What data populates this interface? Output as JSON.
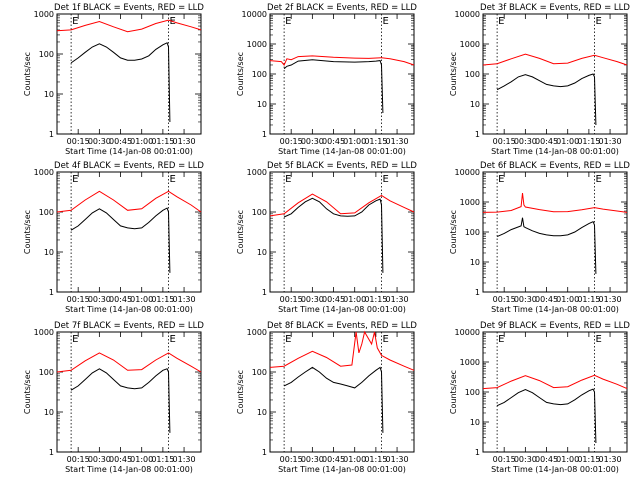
{
  "figure": {
    "ylabel": "Counts/sec",
    "xlabel": "Start Time (14-Jan-08 00:01:00)",
    "marker_label": "E",
    "colors": {
      "events": "#000000",
      "lld": "#ff0000",
      "axes": "#000000",
      "background": "#ffffff"
    }
  },
  "chart_data": [
    {
      "type": "line",
      "title": "Det 1f BLACK = Events, RED = LLD",
      "xlabel": "Start Time (14-Jan-08 00:01:00)",
      "ylabel": "Counts/sec",
      "y_scale": "log",
      "ylim": [
        1,
        1000
      ],
      "ytick_labels": [
        "1",
        "10",
        "100",
        "1000"
      ],
      "xlim": [
        "00:00",
        "01:42"
      ],
      "xtick_labels": [
        "00:15",
        "00:30",
        "00:45",
        "01:00",
        "01:15",
        "01:30"
      ],
      "markers": [
        "00:10",
        "01:19"
      ],
      "series": [
        {
          "name": "LLD",
          "color": "#ff0000",
          "x": [
            "00:00",
            "00:10",
            "00:20",
            "00:30",
            "00:40",
            "00:50",
            "01:00",
            "01:10",
            "01:19",
            "01:25",
            "01:35",
            "01:42"
          ],
          "values": [
            380,
            400,
            520,
            650,
            480,
            360,
            420,
            580,
            700,
            600,
            480,
            400
          ]
        },
        {
          "name": "Events",
          "color": "#000000",
          "x": [
            "00:10",
            "00:15",
            "00:20",
            "00:25",
            "00:30",
            "00:35",
            "00:40",
            "00:45",
            "00:50",
            "00:55",
            "01:00",
            "01:05",
            "01:10",
            "01:15",
            "01:18",
            "01:19",
            "01:20"
          ],
          "values": [
            60,
            80,
            110,
            150,
            180,
            150,
            110,
            80,
            70,
            70,
            75,
            90,
            130,
            170,
            190,
            150,
            2
          ]
        }
      ]
    },
    {
      "type": "line",
      "title": "Det 2f BLACK = Events, RED = LLD",
      "xlabel": "Start Time (14-Jan-08 00:01:00)",
      "ylabel": "Counts/sec",
      "y_scale": "log",
      "ylim": [
        1,
        10000
      ],
      "ytick_labels": [
        "1",
        "10",
        "100",
        "1000",
        "10000"
      ],
      "xlim": [
        "00:00",
        "01:42"
      ],
      "xtick_labels": [
        "00:15",
        "00:30",
        "00:45",
        "01:00",
        "01:15",
        "01:30"
      ],
      "markers": [
        "00:10",
        "01:19"
      ],
      "series": [
        {
          "name": "LLD",
          "color": "#ff0000",
          "x": [
            "00:00",
            "00:08",
            "00:10",
            "00:12",
            "00:15",
            "00:20",
            "00:30",
            "00:45",
            "01:00",
            "01:10",
            "01:19",
            "01:25",
            "01:35",
            "01:42"
          ],
          "values": [
            280,
            260,
            200,
            320,
            300,
            380,
            400,
            360,
            340,
            330,
            350,
            320,
            260,
            200
          ]
        },
        {
          "name": "Events",
          "color": "#000000",
          "x": [
            "00:10",
            "00:12",
            "00:15",
            "00:20",
            "00:30",
            "00:45",
            "01:00",
            "01:10",
            "01:15",
            "01:18",
            "01:19",
            "01:20"
          ],
          "values": [
            150,
            180,
            200,
            270,
            300,
            260,
            250,
            260,
            270,
            280,
            200,
            5
          ]
        }
      ]
    },
    {
      "type": "line",
      "title": "Det 3f BLACK = Events, RED = LLD",
      "xlabel": "Start Time (14-Jan-08 00:01:00)",
      "ylabel": "Counts/sec",
      "y_scale": "log",
      "ylim": [
        1,
        10000
      ],
      "ytick_labels": [
        "1",
        "10",
        "100",
        "1000",
        "10000"
      ],
      "xlim": [
        "00:00",
        "01:42"
      ],
      "xtick_labels": [
        "00:15",
        "00:30",
        "00:45",
        "01:00",
        "01:15",
        "01:30"
      ],
      "markers": [
        "00:10",
        "01:19"
      ],
      "series": [
        {
          "name": "LLD",
          "color": "#ff0000",
          "x": [
            "00:00",
            "00:10",
            "00:20",
            "00:30",
            "00:40",
            "00:50",
            "01:00",
            "01:10",
            "01:19",
            "01:25",
            "01:35",
            "01:42"
          ],
          "values": [
            200,
            220,
            320,
            460,
            330,
            220,
            230,
            330,
            420,
            350,
            260,
            200
          ]
        },
        {
          "name": "Events",
          "color": "#000000",
          "x": [
            "00:10",
            "00:15",
            "00:20",
            "00:25",
            "00:30",
            "00:35",
            "00:40",
            "00:45",
            "00:50",
            "00:55",
            "01:00",
            "01:05",
            "01:10",
            "01:15",
            "01:18",
            "01:19",
            "01:20"
          ],
          "values": [
            30,
            40,
            55,
            80,
            95,
            80,
            60,
            45,
            40,
            38,
            40,
            50,
            70,
            90,
            100,
            80,
            2
          ]
        }
      ]
    },
    {
      "type": "line",
      "title": "Det 4f BLACK = Events, RED = LLD",
      "xlabel": "Start Time (14-Jan-08 00:01:00)",
      "ylabel": "Counts/sec",
      "y_scale": "log",
      "ylim": [
        1,
        1000
      ],
      "ytick_labels": [
        "1",
        "10",
        "100",
        "1000"
      ],
      "xlim": [
        "00:00",
        "01:42"
      ],
      "xtick_labels": [
        "00:15",
        "00:30",
        "00:45",
        "01:00",
        "01:15",
        "01:30"
      ],
      "markers": [
        "00:10",
        "01:19"
      ],
      "series": [
        {
          "name": "LLD",
          "color": "#ff0000",
          "x": [
            "00:00",
            "00:10",
            "00:20",
            "00:30",
            "00:40",
            "00:50",
            "01:00",
            "01:10",
            "01:19",
            "01:25",
            "01:35",
            "01:42"
          ],
          "values": [
            100,
            110,
            200,
            330,
            200,
            110,
            120,
            220,
            330,
            240,
            150,
            100
          ]
        },
        {
          "name": "Events",
          "color": "#000000",
          "x": [
            "00:10",
            "00:15",
            "00:20",
            "00:25",
            "00:30",
            "00:35",
            "00:40",
            "00:45",
            "00:50",
            "00:55",
            "01:00",
            "01:05",
            "01:10",
            "01:15",
            "01:18",
            "01:19",
            "01:20"
          ],
          "values": [
            35,
            45,
            65,
            95,
            120,
            95,
            65,
            45,
            40,
            38,
            40,
            55,
            80,
            110,
            125,
            100,
            3
          ]
        }
      ]
    },
    {
      "type": "line",
      "title": "Det 5f BLACK = Events, RED = LLD",
      "xlabel": "Start Time (14-Jan-08 00:01:00)",
      "ylabel": "Counts/sec",
      "y_scale": "log",
      "ylim": [
        1,
        1000
      ],
      "ytick_labels": [
        "1",
        "10",
        "100",
        "1000"
      ],
      "xlim": [
        "00:00",
        "01:42"
      ],
      "xtick_labels": [
        "00:15",
        "00:30",
        "00:45",
        "01:00",
        "01:15",
        "01:30"
      ],
      "markers": [
        "00:10",
        "01:19"
      ],
      "series": [
        {
          "name": "LLD",
          "color": "#ff0000",
          "x": [
            "00:00",
            "00:10",
            "00:20",
            "00:30",
            "00:40",
            "00:50",
            "01:00",
            "01:10",
            "01:19",
            "01:25",
            "01:35",
            "01:42"
          ],
          "values": [
            80,
            90,
            170,
            280,
            180,
            90,
            95,
            170,
            260,
            190,
            130,
            100
          ]
        },
        {
          "name": "Events",
          "color": "#000000",
          "x": [
            "00:10",
            "00:15",
            "00:20",
            "00:25",
            "00:30",
            "00:35",
            "00:40",
            "00:45",
            "00:50",
            "00:55",
            "01:00",
            "01:05",
            "01:10",
            "01:15",
            "01:18",
            "01:19",
            "01:20"
          ],
          "values": [
            75,
            90,
            130,
            180,
            220,
            180,
            120,
            90,
            80,
            78,
            80,
            100,
            150,
            190,
            210,
            150,
            3
          ]
        }
      ]
    },
    {
      "type": "line",
      "title": "Det 6f BLACK = Events, RED = LLD",
      "xlabel": "Start Time (14-Jan-08 00:01:00)",
      "ylabel": "Counts/sec",
      "y_scale": "log",
      "ylim": [
        1,
        10000
      ],
      "ytick_labels": [
        "1",
        "10",
        "100",
        "1000",
        "10000"
      ],
      "xlim": [
        "00:00",
        "01:42"
      ],
      "xtick_labels": [
        "00:15",
        "00:30",
        "00:45",
        "01:00",
        "01:15",
        "01:30"
      ],
      "markers": [
        "00:10",
        "01:19"
      ],
      "series": [
        {
          "name": "LLD",
          "color": "#ff0000",
          "x": [
            "00:00",
            "00:10",
            "00:20",
            "00:27",
            "00:28",
            "00:29",
            "00:30",
            "00:40",
            "00:50",
            "01:00",
            "01:10",
            "01:19",
            "01:25",
            "01:35",
            "01:42"
          ],
          "values": [
            450,
            460,
            520,
            700,
            2000,
            800,
            680,
            560,
            470,
            480,
            550,
            650,
            580,
            500,
            450
          ]
        },
        {
          "name": "Events",
          "color": "#000000",
          "x": [
            "00:10",
            "00:15",
            "00:20",
            "00:27",
            "00:28",
            "00:29",
            "00:30",
            "00:35",
            "00:40",
            "00:45",
            "00:50",
            "00:55",
            "01:00",
            "01:05",
            "01:10",
            "01:15",
            "01:18",
            "01:19",
            "01:20"
          ],
          "values": [
            70,
            90,
            120,
            160,
            300,
            150,
            140,
            110,
            90,
            80,
            75,
            75,
            80,
            100,
            140,
            190,
            220,
            170,
            4
          ]
        }
      ]
    },
    {
      "type": "line",
      "title": "Det 7f BLACK = Events, RED = LLD",
      "xlabel": "Start Time (14-Jan-08 00:01:00)",
      "ylabel": "Counts/sec",
      "y_scale": "log",
      "ylim": [
        1,
        1000
      ],
      "ytick_labels": [
        "1",
        "10",
        "100",
        "1000"
      ],
      "xlim": [
        "00:00",
        "01:42"
      ],
      "xtick_labels": [
        "00:15",
        "00:30",
        "00:45",
        "01:00",
        "01:15",
        "01:30"
      ],
      "markers": [
        "00:10",
        "01:19"
      ],
      "series": [
        {
          "name": "LLD",
          "color": "#ff0000",
          "x": [
            "00:00",
            "00:10",
            "00:20",
            "00:30",
            "00:40",
            "00:50",
            "01:00",
            "01:10",
            "01:19",
            "01:25",
            "01:35",
            "01:42"
          ],
          "values": [
            100,
            110,
            190,
            300,
            200,
            110,
            115,
            200,
            300,
            220,
            140,
            100
          ]
        },
        {
          "name": "Events",
          "color": "#000000",
          "x": [
            "00:10",
            "00:15",
            "00:20",
            "00:25",
            "00:30",
            "00:35",
            "00:40",
            "00:45",
            "00:50",
            "00:55",
            "01:00",
            "01:05",
            "01:10",
            "01:15",
            "01:18",
            "01:19",
            "01:20"
          ],
          "values": [
            35,
            45,
            65,
            95,
            120,
            95,
            65,
            45,
            40,
            38,
            40,
            55,
            80,
            110,
            120,
            100,
            3
          ]
        }
      ]
    },
    {
      "type": "line",
      "title": "Det 8f BLACK = Events, RED = LLD",
      "xlabel": "Start Time (14-Jan-08 00:01:00)",
      "ylabel": "Counts/sec",
      "y_scale": "log",
      "ylim": [
        1,
        1000
      ],
      "ytick_labels": [
        "1",
        "10",
        "100",
        "1000"
      ],
      "xlim": [
        "00:00",
        "01:42"
      ],
      "xtick_labels": [
        "00:15",
        "00:30",
        "00:45",
        "01:00",
        "01:15",
        "01:30"
      ],
      "markers": [
        "00:10",
        "01:19"
      ],
      "series": [
        {
          "name": "LLD",
          "color": "#ff0000",
          "x": [
            "00:00",
            "00:10",
            "00:20",
            "00:30",
            "00:40",
            "00:50",
            "00:58",
            "01:01",
            "01:03",
            "01:05",
            "01:07",
            "01:12",
            "01:14",
            "01:16",
            "01:19",
            "01:25",
            "01:35",
            "01:42"
          ],
          "values": [
            130,
            140,
            220,
            330,
            230,
            140,
            150,
            1000,
            300,
            500,
            1000,
            500,
            1000,
            400,
            260,
            200,
            140,
            110
          ]
        },
        {
          "name": "Events",
          "color": "#000000",
          "x": [
            "00:10",
            "00:15",
            "00:20",
            "00:25",
            "00:30",
            "00:35",
            "00:40",
            "00:45",
            "00:50",
            "00:55",
            "01:00",
            "01:05",
            "01:10",
            "01:15",
            "01:18",
            "01:19",
            "01:20"
          ],
          "values": [
            45,
            55,
            75,
            100,
            130,
            100,
            70,
            55,
            50,
            45,
            40,
            55,
            80,
            110,
            130,
            100,
            3
          ]
        }
      ]
    },
    {
      "type": "line",
      "title": "Det 9f BLACK = Events, RED = LLD",
      "xlabel": "Start Time (14-Jan-08 00:01:00)",
      "ylabel": "Counts/sec",
      "y_scale": "log",
      "ylim": [
        1,
        10000
      ],
      "ytick_labels": [
        "1",
        "10",
        "100",
        "1000",
        "10000"
      ],
      "xlim": [
        "00:00",
        "01:42"
      ],
      "xtick_labels": [
        "00:15",
        "00:30",
        "00:45",
        "01:00",
        "01:15",
        "01:30"
      ],
      "markers": [
        "00:10",
        "01:19"
      ],
      "series": [
        {
          "name": "LLD",
          "color": "#ff0000",
          "x": [
            "00:00",
            "00:10",
            "00:20",
            "00:30",
            "00:40",
            "00:50",
            "01:00",
            "01:10",
            "01:19",
            "01:25",
            "01:35",
            "01:42"
          ],
          "values": [
            130,
            140,
            230,
            350,
            240,
            140,
            150,
            250,
            360,
            270,
            180,
            130
          ]
        },
        {
          "name": "Events",
          "color": "#000000",
          "x": [
            "00:10",
            "00:15",
            "00:20",
            "00:25",
            "00:30",
            "00:35",
            "00:40",
            "00:45",
            "00:50",
            "00:55",
            "01:00",
            "01:05",
            "01:10",
            "01:15",
            "01:18",
            "01:19",
            "01:20"
          ],
          "values": [
            35,
            45,
            65,
            95,
            120,
            95,
            65,
            45,
            40,
            38,
            40,
            55,
            80,
            110,
            125,
            100,
            2
          ]
        }
      ]
    }
  ]
}
